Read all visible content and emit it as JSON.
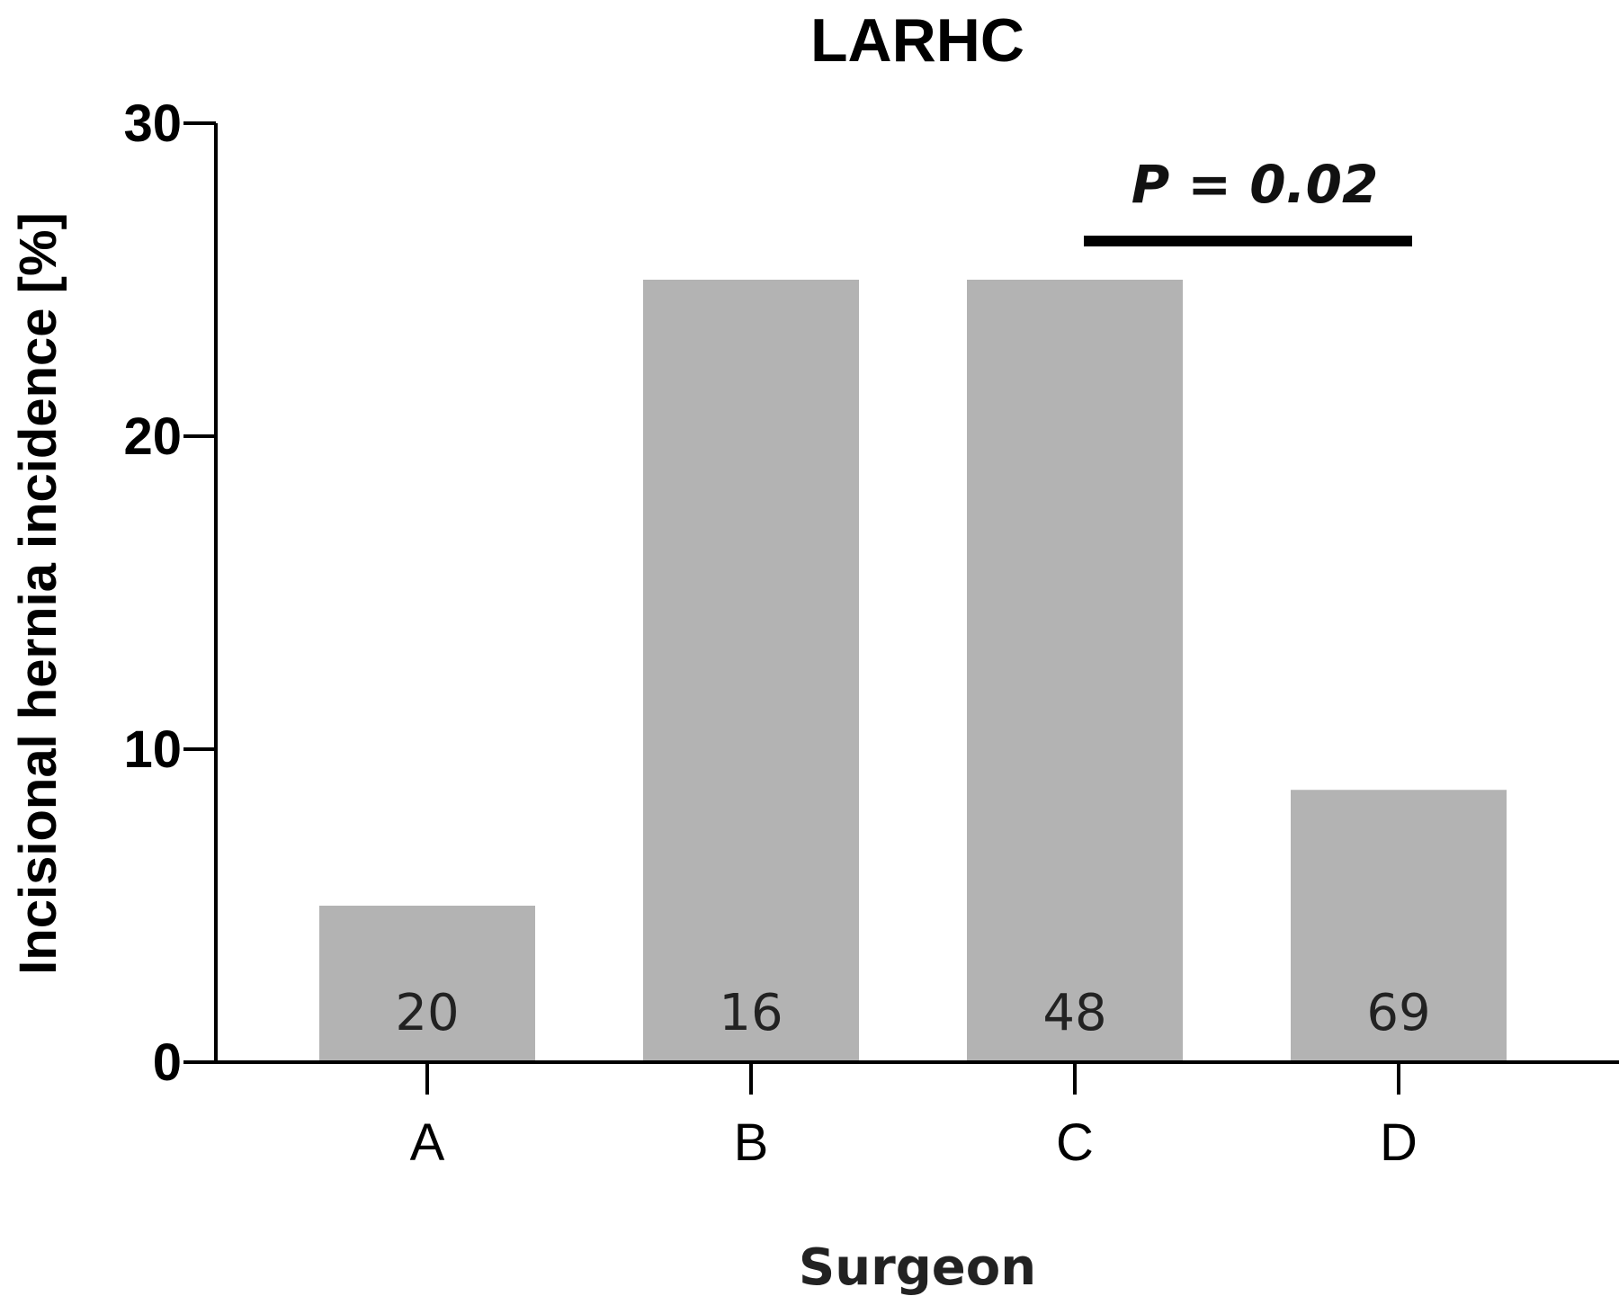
{
  "chart_data": {
    "type": "bar",
    "title": "LARHC",
    "xlabel": "Surgeon",
    "ylabel": "Incisional hernia incidence [%]",
    "categories": [
      "A",
      "B",
      "C",
      "D"
    ],
    "values": [
      5.0,
      25.0,
      25.0,
      8.7
    ],
    "bar_labels": [
      "20",
      "16",
      "48",
      "69"
    ],
    "ylim": [
      0,
      30
    ],
    "yticks": [
      0,
      10,
      20,
      30
    ],
    "grid": false,
    "bar_color": "#b3b3b3",
    "annotations": [
      {
        "text": "P = 0.02",
        "from_category": "C",
        "to_category": "D"
      }
    ]
  }
}
